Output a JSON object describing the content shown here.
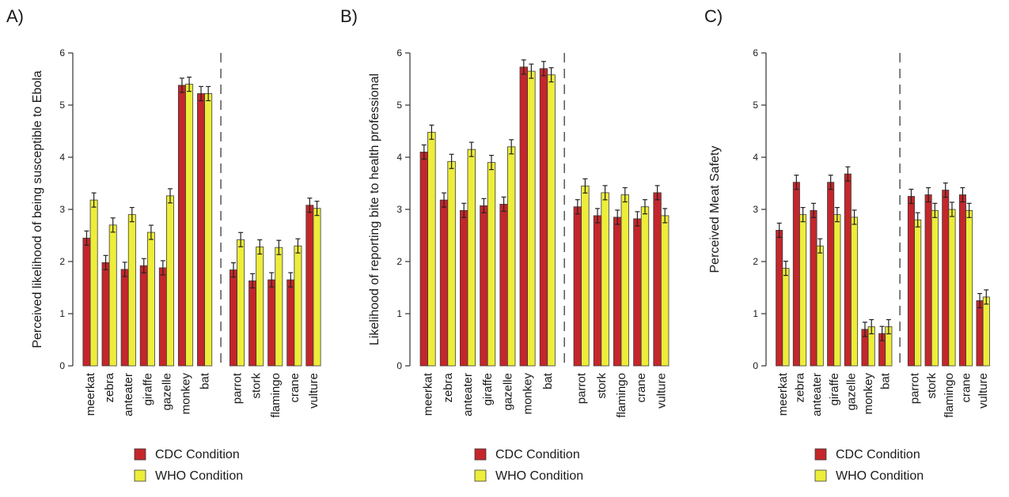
{
  "colors": {
    "cdc": "#c4262b",
    "who": "#eded3a",
    "axis": "#333333"
  },
  "chart_data": [
    {
      "type": "bar",
      "panel_label": "A)",
      "title": "",
      "xlabel": "",
      "ylabel": "Perceived likelihood of being susceptible to Ebola",
      "ylim": [
        0,
        6
      ],
      "yticks": [
        0,
        1,
        2,
        3,
        4,
        5,
        6
      ],
      "categories": [
        "meerkat",
        "zebra",
        "anteater",
        "giraffe",
        "gazelle",
        "monkey",
        "bat",
        "parrot",
        "stork",
        "flamingo",
        "crane",
        "vulture"
      ],
      "separator_after_index": 6,
      "series": [
        {
          "name": "CDC Condition",
          "values": [
            2.45,
            1.98,
            1.85,
            1.92,
            1.88,
            5.38,
            5.22,
            1.84,
            1.63,
            1.65,
            1.65,
            3.08
          ]
        },
        {
          "name": "WHO Condition",
          "values": [
            3.18,
            2.7,
            2.9,
            2.56,
            3.26,
            5.4,
            5.22,
            2.42,
            2.28,
            2.27,
            2.3,
            3.02
          ]
        }
      ],
      "legend": [
        "CDC Condition",
        "WHO Condition"
      ],
      "legend_position": "bottom",
      "grid": false
    },
    {
      "type": "bar",
      "panel_label": "B)",
      "title": "",
      "xlabel": "",
      "ylabel": "Likelihood of reporting bite to health professional",
      "ylim": [
        0,
        6
      ],
      "yticks": [
        0,
        1,
        2,
        3,
        4,
        5,
        6
      ],
      "categories": [
        "meerkat",
        "zebra",
        "anteater",
        "giraffe",
        "gazelle",
        "monkey",
        "bat",
        "parrot",
        "stork",
        "flamingo",
        "crane",
        "vulture"
      ],
      "separator_after_index": 6,
      "series": [
        {
          "name": "CDC Condition",
          "values": [
            4.1,
            3.18,
            2.98,
            3.07,
            3.1,
            5.73,
            5.7,
            3.05,
            2.88,
            2.85,
            2.82,
            3.32
          ]
        },
        {
          "name": "WHO Condition",
          "values": [
            4.48,
            3.92,
            4.15,
            3.9,
            4.2,
            5.65,
            5.58,
            3.45,
            3.32,
            3.28,
            3.05,
            2.88
          ]
        }
      ],
      "legend": [
        "CDC Condition",
        "WHO Condition"
      ],
      "legend_position": "bottom",
      "grid": false
    },
    {
      "type": "bar",
      "panel_label": "C)",
      "title": "",
      "xlabel": "",
      "ylabel": "Perceived Meat Safety",
      "ylim": [
        0,
        6
      ],
      "yticks": [
        0,
        1,
        2,
        3,
        4,
        5,
        6
      ],
      "categories": [
        "meerkat",
        "zebra",
        "anteater",
        "giraffe",
        "gazelle",
        "monkey",
        "bat",
        "parrot",
        "stork",
        "flamingo",
        "crane",
        "vulture"
      ],
      "separator_after_index": 6,
      "series": [
        {
          "name": "CDC Condition",
          "values": [
            2.6,
            3.52,
            2.98,
            3.52,
            3.68,
            0.7,
            0.62,
            3.25,
            3.28,
            3.37,
            3.28,
            1.25
          ]
        },
        {
          "name": "WHO Condition",
          "values": [
            1.87,
            2.9,
            2.3,
            2.9,
            2.85,
            0.75,
            0.75,
            2.8,
            2.98,
            3.0,
            2.98,
            1.32
          ]
        }
      ],
      "legend": [
        "CDC Condition",
        "WHO Condition"
      ],
      "legend_position": "bottom",
      "grid": false
    }
  ]
}
